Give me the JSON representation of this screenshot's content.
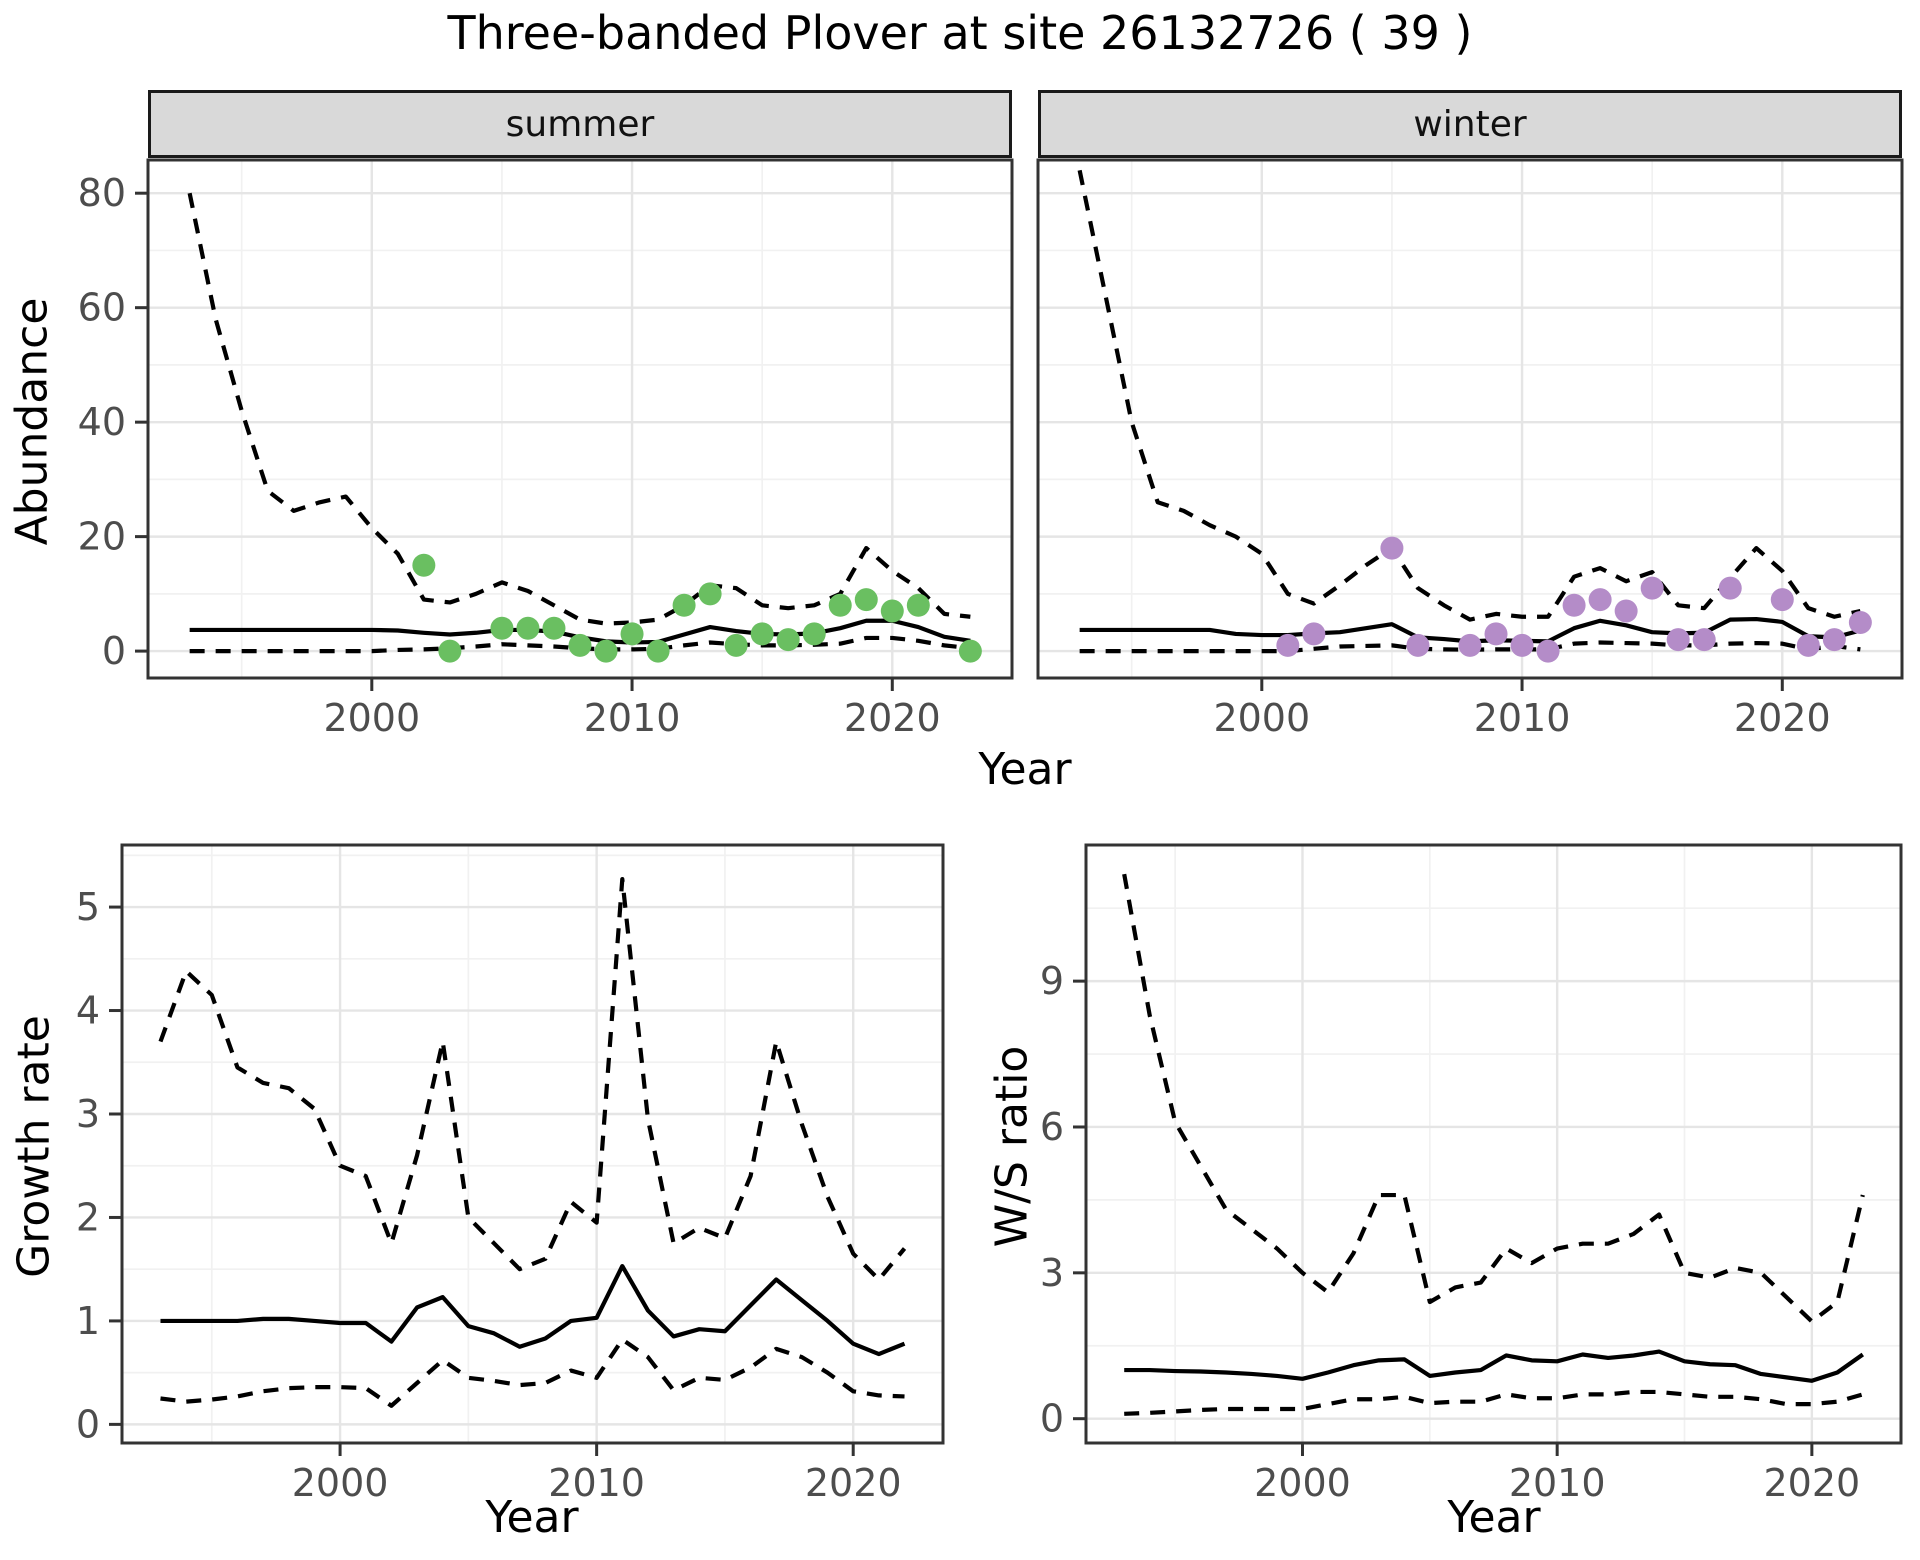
{
  "title": "Three-banded Plover at site 26132726 ( 39 )",
  "facets": [
    {
      "label": "summer"
    },
    {
      "label": "winter"
    }
  ],
  "axis": {
    "shared_x_label": "Year",
    "abundance_label": "Abundance"
  },
  "colors": {
    "summer_point": "#6ABF61",
    "winter_point": "#B48CC8",
    "line": "#000000",
    "panel_border": "#333333",
    "grid_major": "#E5E5E5",
    "grid_minor": "#F1F1F1",
    "strip_bg": "#D9D9D9",
    "tick_text": "#4D4D4D"
  },
  "chart_data": [
    {
      "id": "abundance-summer",
      "type": "line",
      "facet": "summer",
      "title": "summer",
      "xlabel": "Year",
      "ylabel": "Abundance",
      "xlim": [
        1991.4,
        2024.6
      ],
      "ylim": [
        -4.7,
        85.8
      ],
      "xticks": [
        2000,
        2010,
        2020
      ],
      "xminor": [
        1995,
        2005,
        2015
      ],
      "yticks": [
        0,
        20,
        40,
        60,
        80
      ],
      "yminor": [
        10,
        30,
        50,
        70
      ],
      "grid": true,
      "x_years": [
        1993,
        1994,
        1995,
        1996,
        1997,
        1998,
        1999,
        2000,
        2001,
        2002,
        2003,
        2004,
        2005,
        2006,
        2007,
        2008,
        2009,
        2010,
        2011,
        2012,
        2013,
        2014,
        2015,
        2016,
        2017,
        2018,
        2019,
        2020,
        2021,
        2022,
        2023
      ],
      "series": [
        {
          "name": "upper_ci",
          "style": "dashed",
          "values": [
            80,
            58,
            42,
            28,
            24.5,
            26,
            27,
            21.5,
            17,
            9,
            8.5,
            10,
            12,
            10.5,
            8,
            5.5,
            4.8,
            5,
            5.5,
            8,
            11.5,
            11,
            8,
            7.5,
            8,
            10,
            18,
            14,
            11,
            6.5,
            6
          ]
        },
        {
          "name": "median",
          "style": "solid",
          "values": [
            3.7,
            3.7,
            3.7,
            3.7,
            3.7,
            3.7,
            3.7,
            3.7,
            3.6,
            3.2,
            2.9,
            3.2,
            3.7,
            3.7,
            3.4,
            2.4,
            1.7,
            1.5,
            1.6,
            2.9,
            4.2,
            3.5,
            3.0,
            2.9,
            3.1,
            4.0,
            5.3,
            5.3,
            4.2,
            2.5,
            1.8
          ]
        },
        {
          "name": "lower_ci",
          "style": "dashed",
          "values": [
            0,
            0,
            0,
            0,
            0,
            0,
            0,
            0,
            0.2,
            0.3,
            0.5,
            0.8,
            1.2,
            1.0,
            0.8,
            0.5,
            0.3,
            0.3,
            0.4,
            1.0,
            1.5,
            1.2,
            1.0,
            1.0,
            1.1,
            1.3,
            2.3,
            2.3,
            1.8,
            1.0,
            0.5
          ]
        }
      ],
      "points": {
        "name": "observed_counts",
        "color": "#6ABF61",
        "data": [
          [
            2002,
            15
          ],
          [
            2003,
            0
          ],
          [
            2005,
            4
          ],
          [
            2006,
            4
          ],
          [
            2007,
            4
          ],
          [
            2008,
            1
          ],
          [
            2009,
            0
          ],
          [
            2010,
            3
          ],
          [
            2011,
            0
          ],
          [
            2012,
            8
          ],
          [
            2013,
            10
          ],
          [
            2014,
            1
          ],
          [
            2015,
            3
          ],
          [
            2016,
            2
          ],
          [
            2017,
            3
          ],
          [
            2018,
            8
          ],
          [
            2019,
            9
          ],
          [
            2020,
            7
          ],
          [
            2021,
            8
          ],
          [
            2023,
            0
          ]
        ]
      }
    },
    {
      "id": "abundance-winter",
      "type": "line",
      "facet": "winter",
      "title": "winter",
      "xlabel": "Year",
      "ylabel": "Abundance",
      "xlim": [
        1991.4,
        2024.6
      ],
      "ylim": [
        -4.7,
        85.8
      ],
      "xticks": [
        2000,
        2010,
        2020
      ],
      "xminor": [
        1995,
        2005,
        2015
      ],
      "yticks": [
        0,
        20,
        40,
        60,
        80
      ],
      "yminor": [
        10,
        30,
        50,
        70
      ],
      "grid": true,
      "x_years": [
        1993,
        1994,
        1995,
        1996,
        1997,
        1998,
        1999,
        2000,
        2001,
        2002,
        2003,
        2004,
        2005,
        2006,
        2007,
        2008,
        2009,
        2010,
        2011,
        2012,
        2013,
        2014,
        2015,
        2016,
        2017,
        2018,
        2019,
        2020,
        2021,
        2022,
        2023
      ],
      "series": [
        {
          "name": "upper_ci",
          "style": "dashed",
          "values": [
            84,
            62,
            40,
            26,
            24.5,
            22,
            20,
            17,
            10,
            8.3,
            11.5,
            15,
            18,
            11,
            8,
            5.5,
            6.5,
            6,
            6,
            13,
            14.5,
            12.2,
            13.8,
            8,
            7.5,
            12.8,
            18,
            14,
            7.5,
            6,
            7
          ]
        },
        {
          "name": "median",
          "style": "solid",
          "values": [
            3.7,
            3.7,
            3.7,
            3.7,
            3.7,
            3.7,
            3.0,
            2.8,
            2.8,
            3.1,
            3.3,
            4.0,
            4.7,
            2.4,
            2.1,
            1.7,
            1.9,
            1.8,
            1.7,
            4.0,
            5.3,
            4.5,
            3.3,
            3.1,
            3.2,
            5.5,
            5.6,
            5.1,
            2.6,
            2.4,
            3.6
          ]
        },
        {
          "name": "lower_ci",
          "style": "dashed",
          "values": [
            0,
            0,
            0,
            0,
            0,
            0,
            0,
            0,
            0,
            0.4,
            0.8,
            0.9,
            1.0,
            0.4,
            0.3,
            0.25,
            0.3,
            0.3,
            0.3,
            1.3,
            1.5,
            1.4,
            1.3,
            1.0,
            1.0,
            1.3,
            1.4,
            1.3,
            0.3,
            0.9,
            0.3
          ]
        }
      ],
      "points": {
        "name": "observed_counts",
        "color": "#B48CC8",
        "data": [
          [
            2001,
            1
          ],
          [
            2002,
            3
          ],
          [
            2005,
            18
          ],
          [
            2006,
            1
          ],
          [
            2008,
            1
          ],
          [
            2009,
            3
          ],
          [
            2010,
            1
          ],
          [
            2011,
            0
          ],
          [
            2012,
            8
          ],
          [
            2013,
            9
          ],
          [
            2014,
            7
          ],
          [
            2015,
            11
          ],
          [
            2016,
            2
          ],
          [
            2017,
            2
          ],
          [
            2018,
            11
          ],
          [
            2020,
            9
          ],
          [
            2021,
            1
          ],
          [
            2022,
            2
          ],
          [
            2023,
            5
          ]
        ]
      }
    },
    {
      "id": "growth-rate",
      "type": "line",
      "title": "Growth rate",
      "xlabel": "Year",
      "ylabel": "Growth rate",
      "xlim": [
        1991.5,
        2023.5
      ],
      "ylim": [
        -0.18,
        5.6
      ],
      "xticks": [
        2000,
        2010,
        2020
      ],
      "xminor": [
        1995,
        2005,
        2015
      ],
      "yticks": [
        0,
        1,
        2,
        3,
        4,
        5
      ],
      "yminor": [
        0.5,
        1.5,
        2.5,
        3.5,
        4.5,
        5.5
      ],
      "grid": true,
      "x_years": [
        1993,
        1994,
        1995,
        1996,
        1997,
        1998,
        1999,
        2000,
        2001,
        2002,
        2003,
        2004,
        2005,
        2006,
        2007,
        2008,
        2009,
        2010,
        2011,
        2012,
        2013,
        2014,
        2015,
        2016,
        2017,
        2018,
        2019,
        2020,
        2021,
        2022
      ],
      "series": [
        {
          "name": "upper_ci",
          "style": "dashed",
          "values": [
            3.7,
            4.38,
            4.15,
            3.45,
            3.3,
            3.25,
            3.05,
            2.5,
            2.4,
            1.75,
            2.6,
            3.7,
            2.0,
            1.75,
            1.5,
            1.6,
            2.15,
            1.95,
            5.27,
            2.95,
            1.75,
            1.9,
            1.8,
            2.4,
            3.7,
            2.9,
            2.2,
            1.65,
            1.4,
            1.7
          ]
        },
        {
          "name": "median",
          "style": "solid",
          "values": [
            1.0,
            1.0,
            1.0,
            1.0,
            1.02,
            1.02,
            1.0,
            0.98,
            0.98,
            0.8,
            1.13,
            1.23,
            0.95,
            0.88,
            0.75,
            0.83,
            1.0,
            1.03,
            1.53,
            1.1,
            0.85,
            0.92,
            0.9,
            1.15,
            1.4,
            1.2,
            1.0,
            0.78,
            0.68,
            0.78
          ]
        },
        {
          "name": "lower_ci",
          "style": "dashed",
          "values": [
            0.25,
            0.22,
            0.24,
            0.27,
            0.32,
            0.35,
            0.36,
            0.36,
            0.35,
            0.18,
            0.4,
            0.62,
            0.45,
            0.42,
            0.38,
            0.4,
            0.52,
            0.45,
            0.82,
            0.65,
            0.33,
            0.45,
            0.43,
            0.55,
            0.73,
            0.65,
            0.5,
            0.32,
            0.28,
            0.27
          ]
        }
      ]
    },
    {
      "id": "ws-ratio",
      "type": "line",
      "title": "W/S ratio",
      "xlabel": "Year",
      "ylabel": "W/S ratio",
      "xlim": [
        1991.5,
        2023.5
      ],
      "ylim": [
        -0.5,
        11.8
      ],
      "xticks": [
        2000,
        2010,
        2020
      ],
      "xminor": [
        1995,
        2005,
        2015
      ],
      "yticks": [
        0,
        3,
        6,
        9
      ],
      "yminor": [
        1.5,
        4.5,
        7.5,
        10.5
      ],
      "grid": true,
      "x_years": [
        1993,
        1994,
        1995,
        1996,
        1997,
        1998,
        1999,
        2000,
        2001,
        2002,
        2003,
        2004,
        2005,
        2006,
        2007,
        2008,
        2009,
        2010,
        2011,
        2012,
        2013,
        2014,
        2015,
        2016,
        2017,
        2018,
        2019,
        2020,
        2021,
        2022
      ],
      "series": [
        {
          "name": "upper_ci",
          "style": "dashed",
          "values": [
            11.2,
            8.3,
            6.1,
            5.2,
            4.3,
            3.9,
            3.5,
            3.0,
            2.6,
            3.4,
            4.6,
            4.6,
            2.4,
            2.7,
            2.8,
            3.5,
            3.2,
            3.5,
            3.6,
            3.6,
            3.8,
            4.2,
            3.0,
            2.9,
            3.1,
            3.0,
            2.5,
            2.0,
            2.4,
            4.6
          ]
        },
        {
          "name": "median",
          "style": "solid",
          "values": [
            1.0,
            1.0,
            0.98,
            0.97,
            0.95,
            0.92,
            0.88,
            0.82,
            0.95,
            1.1,
            1.2,
            1.22,
            0.88,
            0.95,
            1.0,
            1.3,
            1.2,
            1.18,
            1.32,
            1.25,
            1.3,
            1.38,
            1.18,
            1.12,
            1.1,
            0.92,
            0.85,
            0.78,
            0.95,
            1.32
          ]
        },
        {
          "name": "lower_ci",
          "style": "dashed",
          "values": [
            0.1,
            0.12,
            0.15,
            0.18,
            0.2,
            0.2,
            0.2,
            0.2,
            0.3,
            0.4,
            0.4,
            0.45,
            0.32,
            0.35,
            0.35,
            0.5,
            0.42,
            0.42,
            0.5,
            0.5,
            0.55,
            0.55,
            0.5,
            0.45,
            0.45,
            0.4,
            0.3,
            0.3,
            0.35,
            0.5
          ]
        }
      ]
    }
  ]
}
